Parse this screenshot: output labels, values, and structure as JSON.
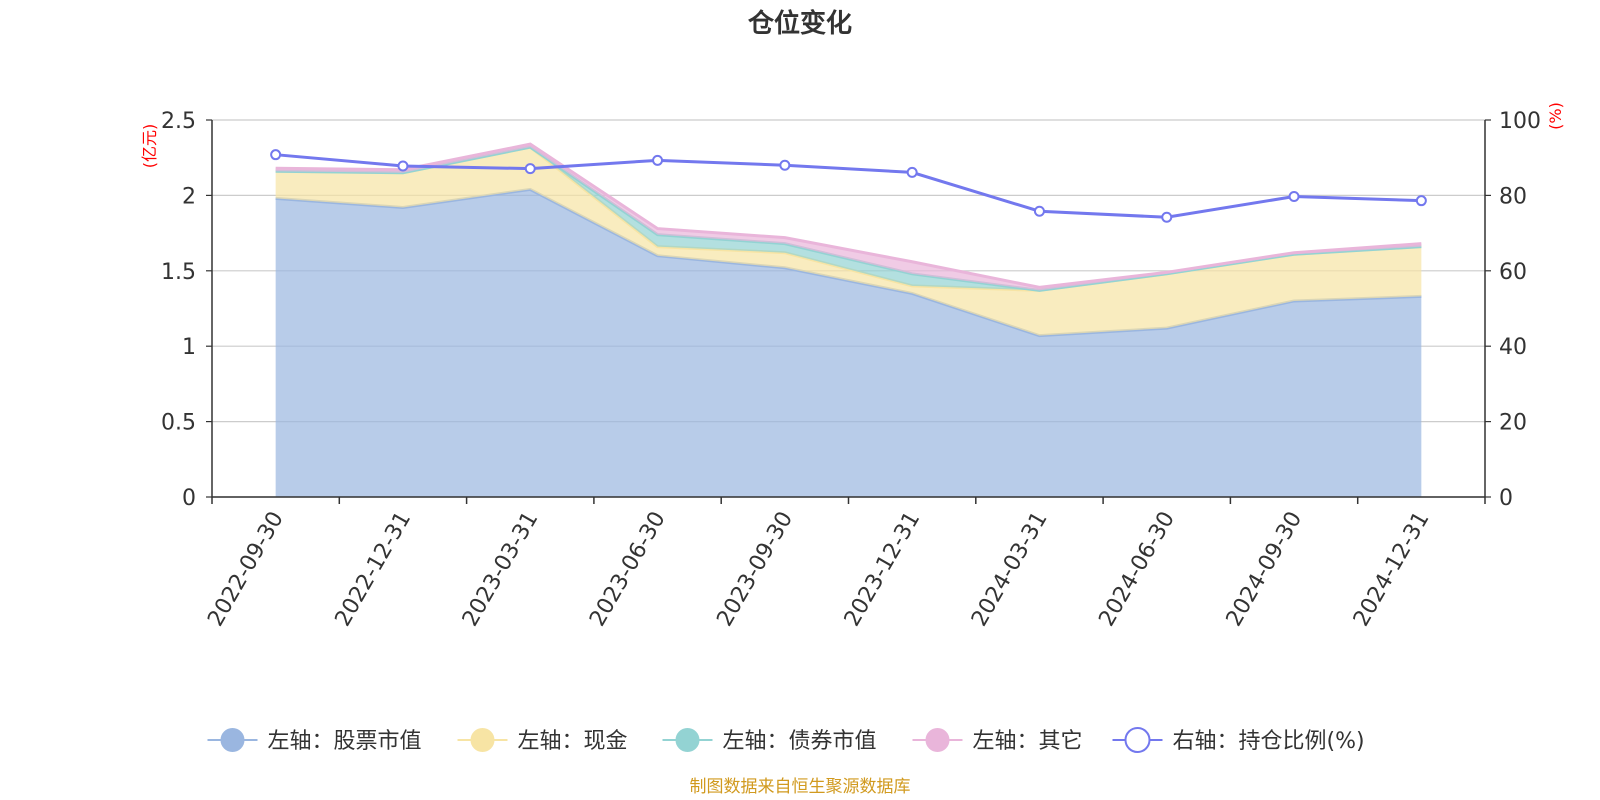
{
  "chart_data": {
    "type": "area",
    "title": "仓位变化",
    "categories": [
      "2022-09-30",
      "2022-12-31",
      "2023-03-31",
      "2023-06-30",
      "2023-09-30",
      "2023-12-31",
      "2024-03-31",
      "2024-06-30",
      "2024-09-30",
      "2024-12-31"
    ],
    "left_axis": {
      "unit": "(亿元)",
      "range": [
        0,
        2.5
      ],
      "ticks": [
        "0",
        "0.5",
        "1",
        "1.5",
        "2",
        "2.5"
      ]
    },
    "right_axis": {
      "unit": "(%)",
      "range": [
        0,
        100
      ],
      "ticks": [
        "0",
        "20",
        "40",
        "60",
        "80",
        "100"
      ]
    },
    "series": [
      {
        "name": "左轴：股票市值",
        "axis": "left",
        "stack": true,
        "color": "#9ab6e0",
        "values": [
          1.98,
          1.92,
          2.04,
          1.6,
          1.52,
          1.35,
          1.07,
          1.12,
          1.3,
          1.33
        ]
      },
      {
        "name": "左轴：现金",
        "axis": "left",
        "stack": true,
        "color": "#f7e4a4",
        "values": [
          0.18,
          0.23,
          0.28,
          0.06,
          0.1,
          0.05,
          0.3,
          0.36,
          0.31,
          0.33
        ]
      },
      {
        "name": "左轴：债券市值",
        "axis": "left",
        "stack": true,
        "color": "#93d3d3",
        "values": [
          0,
          0,
          0,
          0.08,
          0.06,
          0.08,
          0,
          0,
          0,
          0
        ]
      },
      {
        "name": "左轴：其它",
        "axis": "left",
        "stack": true,
        "color": "#e9b5da",
        "values": [
          0.02,
          0.02,
          0.02,
          0.04,
          0.04,
          0.08,
          0.02,
          0.01,
          0.01,
          0.02
        ]
      },
      {
        "name": "右轴：持仓比例(%)",
        "axis": "right",
        "type": "line",
        "color": "#7378ee",
        "values": [
          90.8,
          87.8,
          87.1,
          89.3,
          88.0,
          86.1,
          75.8,
          74.2,
          79.7,
          78.6
        ]
      }
    ],
    "grid": true,
    "legend": "bottom"
  },
  "source_note": "制图数据来自恒生聚源数据库"
}
